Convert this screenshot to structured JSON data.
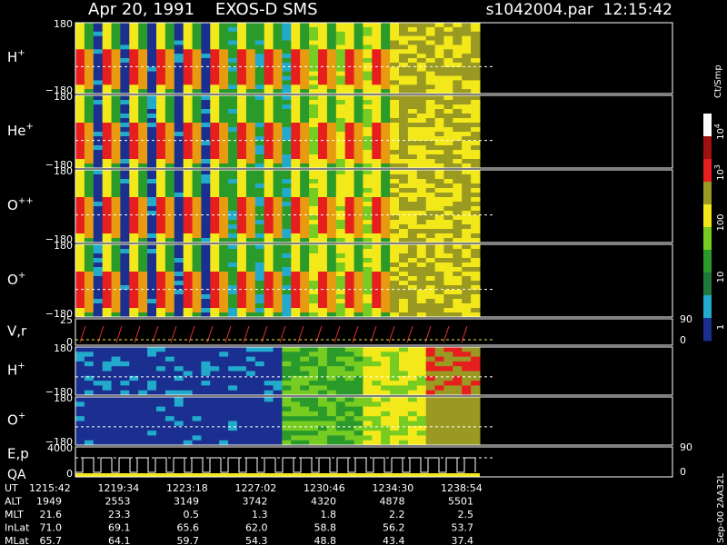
{
  "header": {
    "title": "Apr 20, 1991    EXOS-D SMS",
    "file": "s1042004.par  12:15:42"
  },
  "panels": [
    {
      "label": "H",
      "sup": "+",
      "top": "180",
      "bottom": "−180"
    },
    {
      "label": "He",
      "sup": "+",
      "top": "180",
      "bottom": "−180"
    },
    {
      "label": "O",
      "sup": "++",
      "top": "180",
      "bottom": "−180"
    },
    {
      "label": "O",
      "sup": "+",
      "top": "180",
      "bottom": "−180"
    },
    {
      "label": "V,r",
      "sup": "",
      "top": "25",
      "bottom": "0",
      "right_top": "90",
      "right_bottom": "0"
    },
    {
      "label": "H",
      "sup": "+",
      "top": "180",
      "bottom": "−180"
    },
    {
      "label": "O",
      "sup": "+",
      "top": "180",
      "bottom": "−180"
    },
    {
      "label": "E,p",
      "sup": "",
      "top": "4000",
      "bottom": "0",
      "right_top": "90",
      "right_bottom": "0",
      "label2": "QA"
    }
  ],
  "colorbar": {
    "title": "Ct/Smp",
    "ticks": [
      {
        "base": "10",
        "sup": "4"
      },
      {
        "base": "10",
        "sup": "3"
      },
      {
        "base": "100",
        "sup": ""
      },
      {
        "base": "10",
        "sup": ""
      },
      {
        "base": "1",
        "sup": ""
      }
    ]
  },
  "footer": "Sep-00  2AA32L",
  "table": {
    "rows": [
      [
        "UT",
        "1215:42",
        "1219:34",
        "1223:18",
        "1227:02",
        "1230:46",
        "1234:30",
        "1238:54"
      ],
      [
        "ALT",
        "1949",
        "2553",
        "3149",
        "3742",
        "4320",
        "4878",
        "5501"
      ],
      [
        "MLT",
        "21.6",
        "23.3",
        "0.5",
        "1.3",
        "1.8",
        "2.2",
        "2.5"
      ],
      [
        "InLat",
        "71.0",
        "69.1",
        "65.6",
        "62.0",
        "58.8",
        "56.2",
        "53.7"
      ],
      [
        "MLat",
        "65.7",
        "64.1",
        "59.7",
        "54.3",
        "48.8",
        "43.4",
        "37.4"
      ]
    ]
  }
}
